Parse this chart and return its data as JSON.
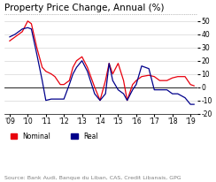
{
  "title": "Property Price Change, Annual (%)",
  "source": "Source: Bank Audi, Banque du Liban, CAS, Credit Libanais, GPG",
  "x_labels": [
    "'09",
    "'10",
    "'11",
    "'12",
    "'13",
    "'14",
    "'15",
    "'16",
    "'17",
    "'18",
    "'19"
  ],
  "nominal_color": "#e8000d",
  "real_color": "#00008b",
  "ylim": [
    -20,
    55
  ],
  "yticks": [
    -20,
    -10,
    0,
    10,
    20,
    30,
    40,
    50
  ],
  "background_color": "#ffffff",
  "grid_color": "#cccccc",
  "title_fontsize": 7.5,
  "tick_fontsize": 5.5,
  "legend_fontsize": 5.5,
  "source_fontsize": 4.5,
  "x_fine": [
    2009.0,
    2009.3,
    2009.7,
    2010.0,
    2010.2,
    2010.5,
    2010.8,
    2011.0,
    2011.3,
    2011.5,
    2011.8,
    2012.0,
    2012.3,
    2012.5,
    2012.7,
    2013.0,
    2013.3,
    2013.7,
    2014.0,
    2014.3,
    2014.5,
    2014.7,
    2015.0,
    2015.3,
    2015.5,
    2015.8,
    2016.0,
    2016.3,
    2016.7,
    2017.0,
    2017.3,
    2017.7,
    2018.0,
    2018.3,
    2018.7,
    2019.0,
    2019.2
  ],
  "nominal_y": [
    35,
    38,
    42,
    50,
    48,
    30,
    15,
    12,
    10,
    8,
    2,
    2,
    5,
    15,
    20,
    23,
    15,
    0,
    -10,
    5,
    18,
    10,
    18,
    5,
    -10,
    2,
    5,
    8,
    9,
    8,
    5,
    5,
    7,
    8,
    8,
    2,
    1
  ],
  "real_y": [
    38,
    40,
    44,
    45,
    44,
    25,
    5,
    -10,
    -9,
    -9,
    -9,
    -9,
    2,
    10,
    15,
    20,
    12,
    -5,
    -10,
    -5,
    18,
    5,
    -2,
    -5,
    -10,
    -2,
    2,
    16,
    14,
    -2,
    -2,
    -2,
    -5,
    -5,
    -8,
    -13,
    -13
  ]
}
